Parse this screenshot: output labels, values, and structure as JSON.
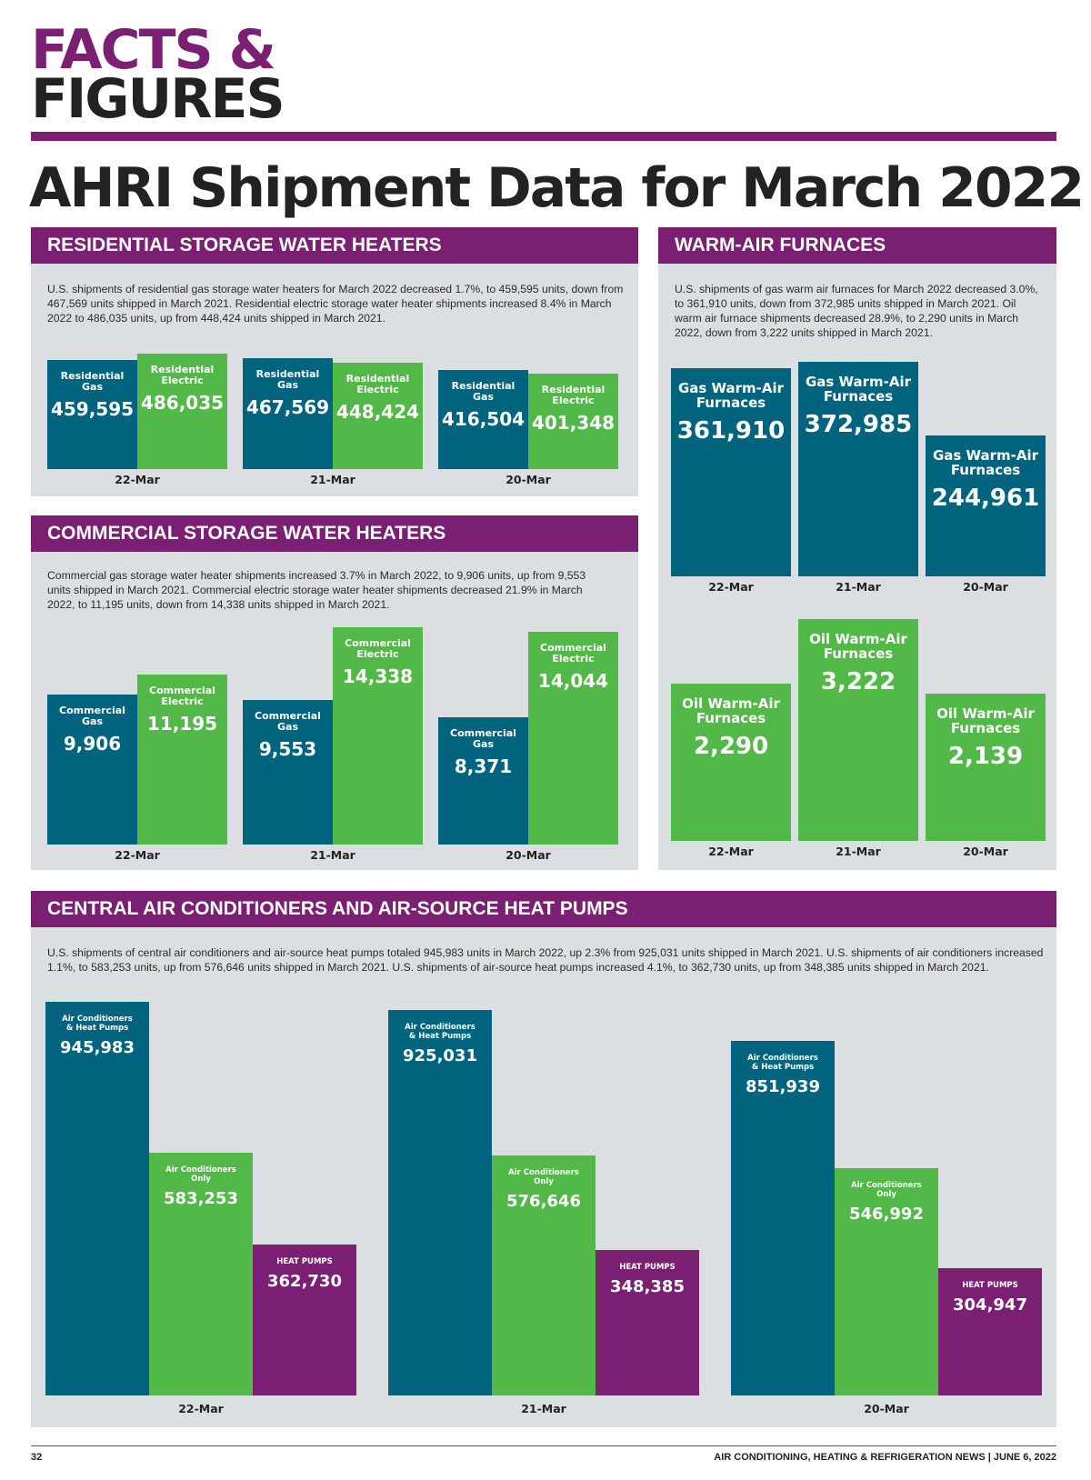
{
  "brand": {
    "line1": "FACTS &",
    "line2": "FIGURES"
  },
  "headline": "AHRI Shipment Data for March 2022",
  "colors": {
    "teal": "#00647f",
    "green": "#52b847",
    "purple": "#7b1f72",
    "panel_bg": "#dcdfe1"
  },
  "panels": {
    "residential": {
      "title": "RESIDENTIAL STORAGE WATER HEATERS",
      "text": "U.S. shipments of residential gas storage water heaters for March 2022 decreased 1.7%, to 459,595 units, down from 467,569 units shipped in March 2021. Residential electric storage water heater shipments increased 8.4% in March 2022 to 486,035 units, up from 448,424 units shipped in March 2021."
    },
    "commercial": {
      "title": "COMMERCIAL STORAGE WATER HEATERS",
      "text": "Commercial gas storage water heater shipments increased 3.7% in March 2022, to 9,906 units, up from 9,553 units shipped in March 2021. Commercial electric storage water heater shipments decreased 21.9% in March 2022, to 11,195 units, down from 14,338 units shipped in March 2021."
    },
    "furnaces": {
      "title": "WARM-AIR FURNACES",
      "text": "U.S. shipments of gas warm air furnaces for March 2022 decreased 3.0%, to 361,910 units, down from 372,985 units shipped in March 2021. Oil warm air furnace shipments decreased 28.9%, to 2,290 units in March 2022, down from 3,222 units shipped in March 2021."
    },
    "ac": {
      "title": "CENTRAL AIR CONDITIONERS AND AIR-SOURCE HEAT PUMPS",
      "text": "U.S. shipments of central air conditioners and air-source heat pumps totaled 945,983 units in March 2022, up 2.3% from 925,031 units shipped in March 2021. U.S. shipments of air conditioners increased 1.1%, to 583,253 units, up from 576,646 units shipped in March 2021. U.S. shipments of air-source heat pumps increased 4.1%, to 362,730 units, up from 348,385 units shipped in March 2021."
    }
  },
  "chart_data": [
    {
      "id": "residential",
      "type": "bar",
      "title": "Residential Storage Water Heaters",
      "categories": [
        "22-Mar",
        "21-Mar",
        "20-Mar"
      ],
      "series": [
        {
          "name": "Residential Gas",
          "color": "#00647f",
          "values": [
            459595,
            467569,
            416504
          ],
          "labels": [
            "459,595",
            "467,569",
            "416,504"
          ]
        },
        {
          "name": "Residential Electric",
          "color": "#52b847",
          "values": [
            486035,
            448424,
            401348
          ],
          "labels": [
            "486,035",
            "448,424",
            "401,348"
          ]
        }
      ]
    },
    {
      "id": "commercial",
      "type": "bar",
      "title": "Commercial Storage Water Heaters",
      "categories": [
        "22-Mar",
        "21-Mar",
        "20-Mar"
      ],
      "series": [
        {
          "name": "Commercial Gas",
          "color": "#00647f",
          "values": [
            9906,
            9553,
            8371
          ],
          "labels": [
            "9,906",
            "9,553",
            "8,371"
          ]
        },
        {
          "name": "Commercial Electric",
          "color": "#52b847",
          "values": [
            11195,
            14338,
            14044
          ],
          "labels": [
            "11,195",
            "14,338",
            "14,044"
          ]
        }
      ]
    },
    {
      "id": "furnaces_gas",
      "type": "bar",
      "title": "Gas Warm-Air Furnaces",
      "categories": [
        "22-Mar",
        "21-Mar",
        "20-Mar"
      ],
      "series": [
        {
          "name": "Gas Warm-Air Furnaces",
          "color": "#00647f",
          "values": [
            361910,
            372985,
            244961
          ],
          "labels": [
            "361,910",
            "372,985",
            "244,961"
          ]
        }
      ]
    },
    {
      "id": "furnaces_oil",
      "type": "bar",
      "title": "Oil Warm-Air Furnaces",
      "categories": [
        "22-Mar",
        "21-Mar",
        "20-Mar"
      ],
      "series": [
        {
          "name": "Oil Warm-Air Furnaces",
          "color": "#52b847",
          "values": [
            2290,
            3222,
            2139
          ],
          "labels": [
            "2,290",
            "3,222",
            "2,139"
          ]
        }
      ]
    },
    {
      "id": "ac",
      "type": "bar",
      "title": "Central Air Conditioners and Air-Source Heat Pumps",
      "categories": [
        "22-Mar",
        "21-Mar",
        "20-Mar"
      ],
      "series": [
        {
          "name": "Air Conditioners & Heat Pumps",
          "color": "#00647f",
          "values": [
            945983,
            925031,
            851939
          ],
          "labels": [
            "945,983",
            "925,031",
            "851,939"
          ]
        },
        {
          "name": "Air Conditioners Only",
          "color": "#52b847",
          "values": [
            583253,
            576646,
            546992
          ],
          "labels": [
            "583,253",
            "576,646",
            "546,992"
          ]
        },
        {
          "name": "HEAT PUMPS",
          "color": "#7b1f72",
          "values": [
            362730,
            348385,
            304947
          ],
          "labels": [
            "362,730",
            "348,385",
            "304,947"
          ]
        }
      ]
    }
  ],
  "footer": {
    "page": "32",
    "publication": "AIR CONDITIONING, HEATING & REFRIGERATION NEWS  |  JUNE 6, 2022"
  }
}
